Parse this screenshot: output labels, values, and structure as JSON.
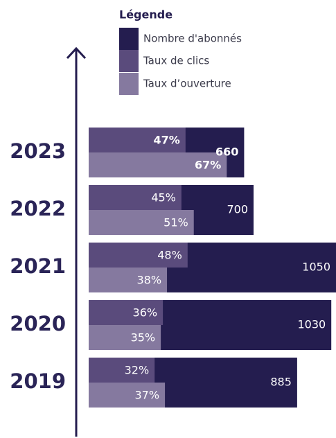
{
  "chart_data": {
    "type": "bar",
    "legend_title": "Légende",
    "categories": [
      "2023",
      "2022",
      "2021",
      "2020",
      "2019"
    ],
    "series": [
      {
        "name": "Nombre d'abonnés",
        "color": "#241d4f",
        "values": [
          660,
          700,
          1050,
          1030,
          885
        ]
      },
      {
        "name": "Taux de clics",
        "color": "#5a4b7c",
        "values": [
          47,
          45,
          48,
          36,
          32
        ],
        "value_labels": [
          "47%",
          "45%",
          "48%",
          "36%",
          "32%"
        ],
        "axis": "x2"
      },
      {
        "name": "Taux d’ouverture",
        "color": "#85799f",
        "values": [
          67,
          51,
          38,
          35,
          37
        ],
        "value_labels": [
          "67%",
          "51%",
          "38%",
          "35%",
          "37%"
        ],
        "axis": "x2"
      }
    ],
    "xlim": [
      0,
      1050
    ],
    "x2lim": [
      0,
      120
    ]
  }
}
